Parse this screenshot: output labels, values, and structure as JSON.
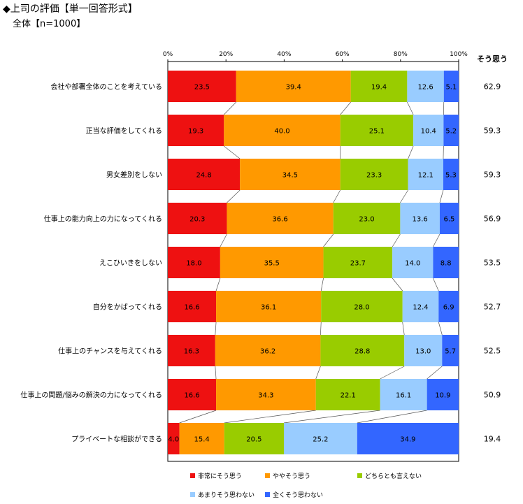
{
  "title": "◆上司の評価【単一回答形式】",
  "subtitle": "全体【n=1000】",
  "chart_data": {
    "type": "bar",
    "orientation": "horizontal-stacked-100",
    "xlim": [
      0,
      100
    ],
    "x_ticks": [
      "0%",
      "20%",
      "40%",
      "60%",
      "80%",
      "100%"
    ],
    "categories": [
      "会社や部署全体のことを考えている",
      "正当な評価をしてくれる",
      "男女差別をしない",
      "仕事上の能力向上の力になってくれる",
      "えこひいきをしない",
      "自分をかばってくれる",
      "仕事上のチャンスを与えてくれる",
      "仕事上の問題/悩みの解決の力になってくれる",
      "プライベートな相談ができる"
    ],
    "series": [
      {
        "name": "非常にそう思う",
        "color": "#ee1111",
        "values": [
          23.5,
          19.3,
          24.8,
          20.3,
          18.0,
          16.6,
          16.3,
          16.6,
          4.0
        ]
      },
      {
        "name": "ややそう思う",
        "color": "#ff9900",
        "values": [
          39.4,
          40.0,
          34.5,
          36.6,
          35.5,
          36.1,
          36.2,
          34.3,
          15.4
        ]
      },
      {
        "name": "どちらとも言えない",
        "color": "#99cc00",
        "values": [
          19.4,
          25.1,
          23.3,
          23.0,
          23.7,
          28.0,
          28.8,
          22.1,
          20.5
        ]
      },
      {
        "name": "あまりそう思わない",
        "color": "#99ccff",
        "values": [
          12.6,
          10.4,
          12.1,
          13.6,
          14.0,
          12.4,
          13.0,
          16.1,
          25.2
        ]
      },
      {
        "name": "全くそう思わない",
        "color": "#3366ff",
        "values": [
          5.1,
          5.2,
          5.3,
          6.5,
          8.8,
          6.9,
          5.7,
          10.9,
          34.9
        ]
      }
    ],
    "summary_header": "そう思う",
    "summary_values": [
      "62.9",
      "59.3",
      "59.3",
      "56.9",
      "53.5",
      "52.7",
      "52.5",
      "50.9",
      "19.4"
    ]
  }
}
